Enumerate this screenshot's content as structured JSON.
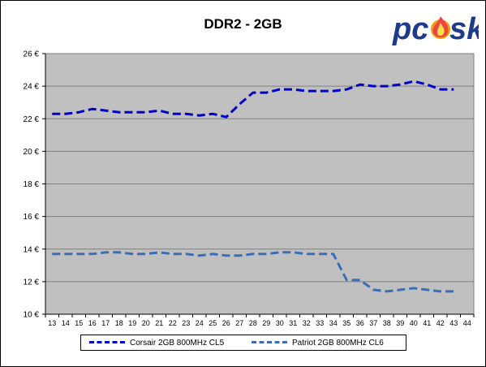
{
  "chart_data": {
    "type": "line",
    "title": "DDR2 - 2GB",
    "xlabel": "",
    "ylabel": "",
    "x": [
      13,
      14,
      15,
      16,
      17,
      18,
      19,
      20,
      21,
      22,
      23,
      24,
      25,
      26,
      27,
      28,
      29,
      30,
      31,
      32,
      33,
      34,
      35,
      36,
      37,
      38,
      39,
      40,
      41,
      42,
      43,
      44
    ],
    "x_tick_labels": [
      "13",
      "14",
      "15",
      "16",
      "17",
      "18",
      "19",
      "20",
      "21",
      "22",
      "23",
      "24",
      "25",
      "26",
      "27",
      "28",
      "29",
      "30",
      "31",
      "32",
      "33",
      "34",
      "35",
      "36",
      "37",
      "38",
      "39",
      "40",
      "41",
      "42",
      "43",
      "44"
    ],
    "ylim": [
      10,
      26
    ],
    "y_ticks": [
      10,
      12,
      14,
      16,
      18,
      20,
      22,
      24,
      26
    ],
    "y_tick_labels": [
      "10 €",
      "12 €",
      "14 €",
      "16 €",
      "18 €",
      "20 €",
      "22 €",
      "24 €",
      "26 €"
    ],
    "grid": "horizontal",
    "legend_position": "bottom",
    "series": [
      {
        "name": "Corsair 2GB 800MHz CL5",
        "color": "#0000cc",
        "values": [
          22.3,
          22.3,
          22.4,
          22.6,
          22.5,
          22.4,
          22.4,
          22.4,
          22.5,
          22.3,
          22.3,
          22.2,
          22.3,
          22.1,
          22.9,
          23.6,
          23.6,
          23.8,
          23.8,
          23.7,
          23.7,
          23.7,
          23.8,
          24.1,
          24.0,
          24.0,
          24.1,
          24.3,
          24.1,
          23.8,
          23.8,
          null
        ]
      },
      {
        "name": "Patriot 2GB 800MHz CL6",
        "color": "#3a6eb8",
        "values": [
          13.7,
          13.7,
          13.7,
          13.7,
          13.8,
          13.8,
          13.7,
          13.7,
          13.8,
          13.7,
          13.7,
          13.6,
          13.7,
          13.6,
          13.6,
          13.7,
          13.7,
          13.8,
          13.8,
          13.7,
          13.7,
          13.7,
          12.1,
          12.1,
          11.5,
          11.4,
          11.5,
          11.6,
          11.5,
          11.4,
          11.4,
          null
        ]
      }
    ]
  },
  "logo": {
    "text_p": "pc",
    "text_s": "sk",
    "icon": "flame-logo-icon"
  }
}
